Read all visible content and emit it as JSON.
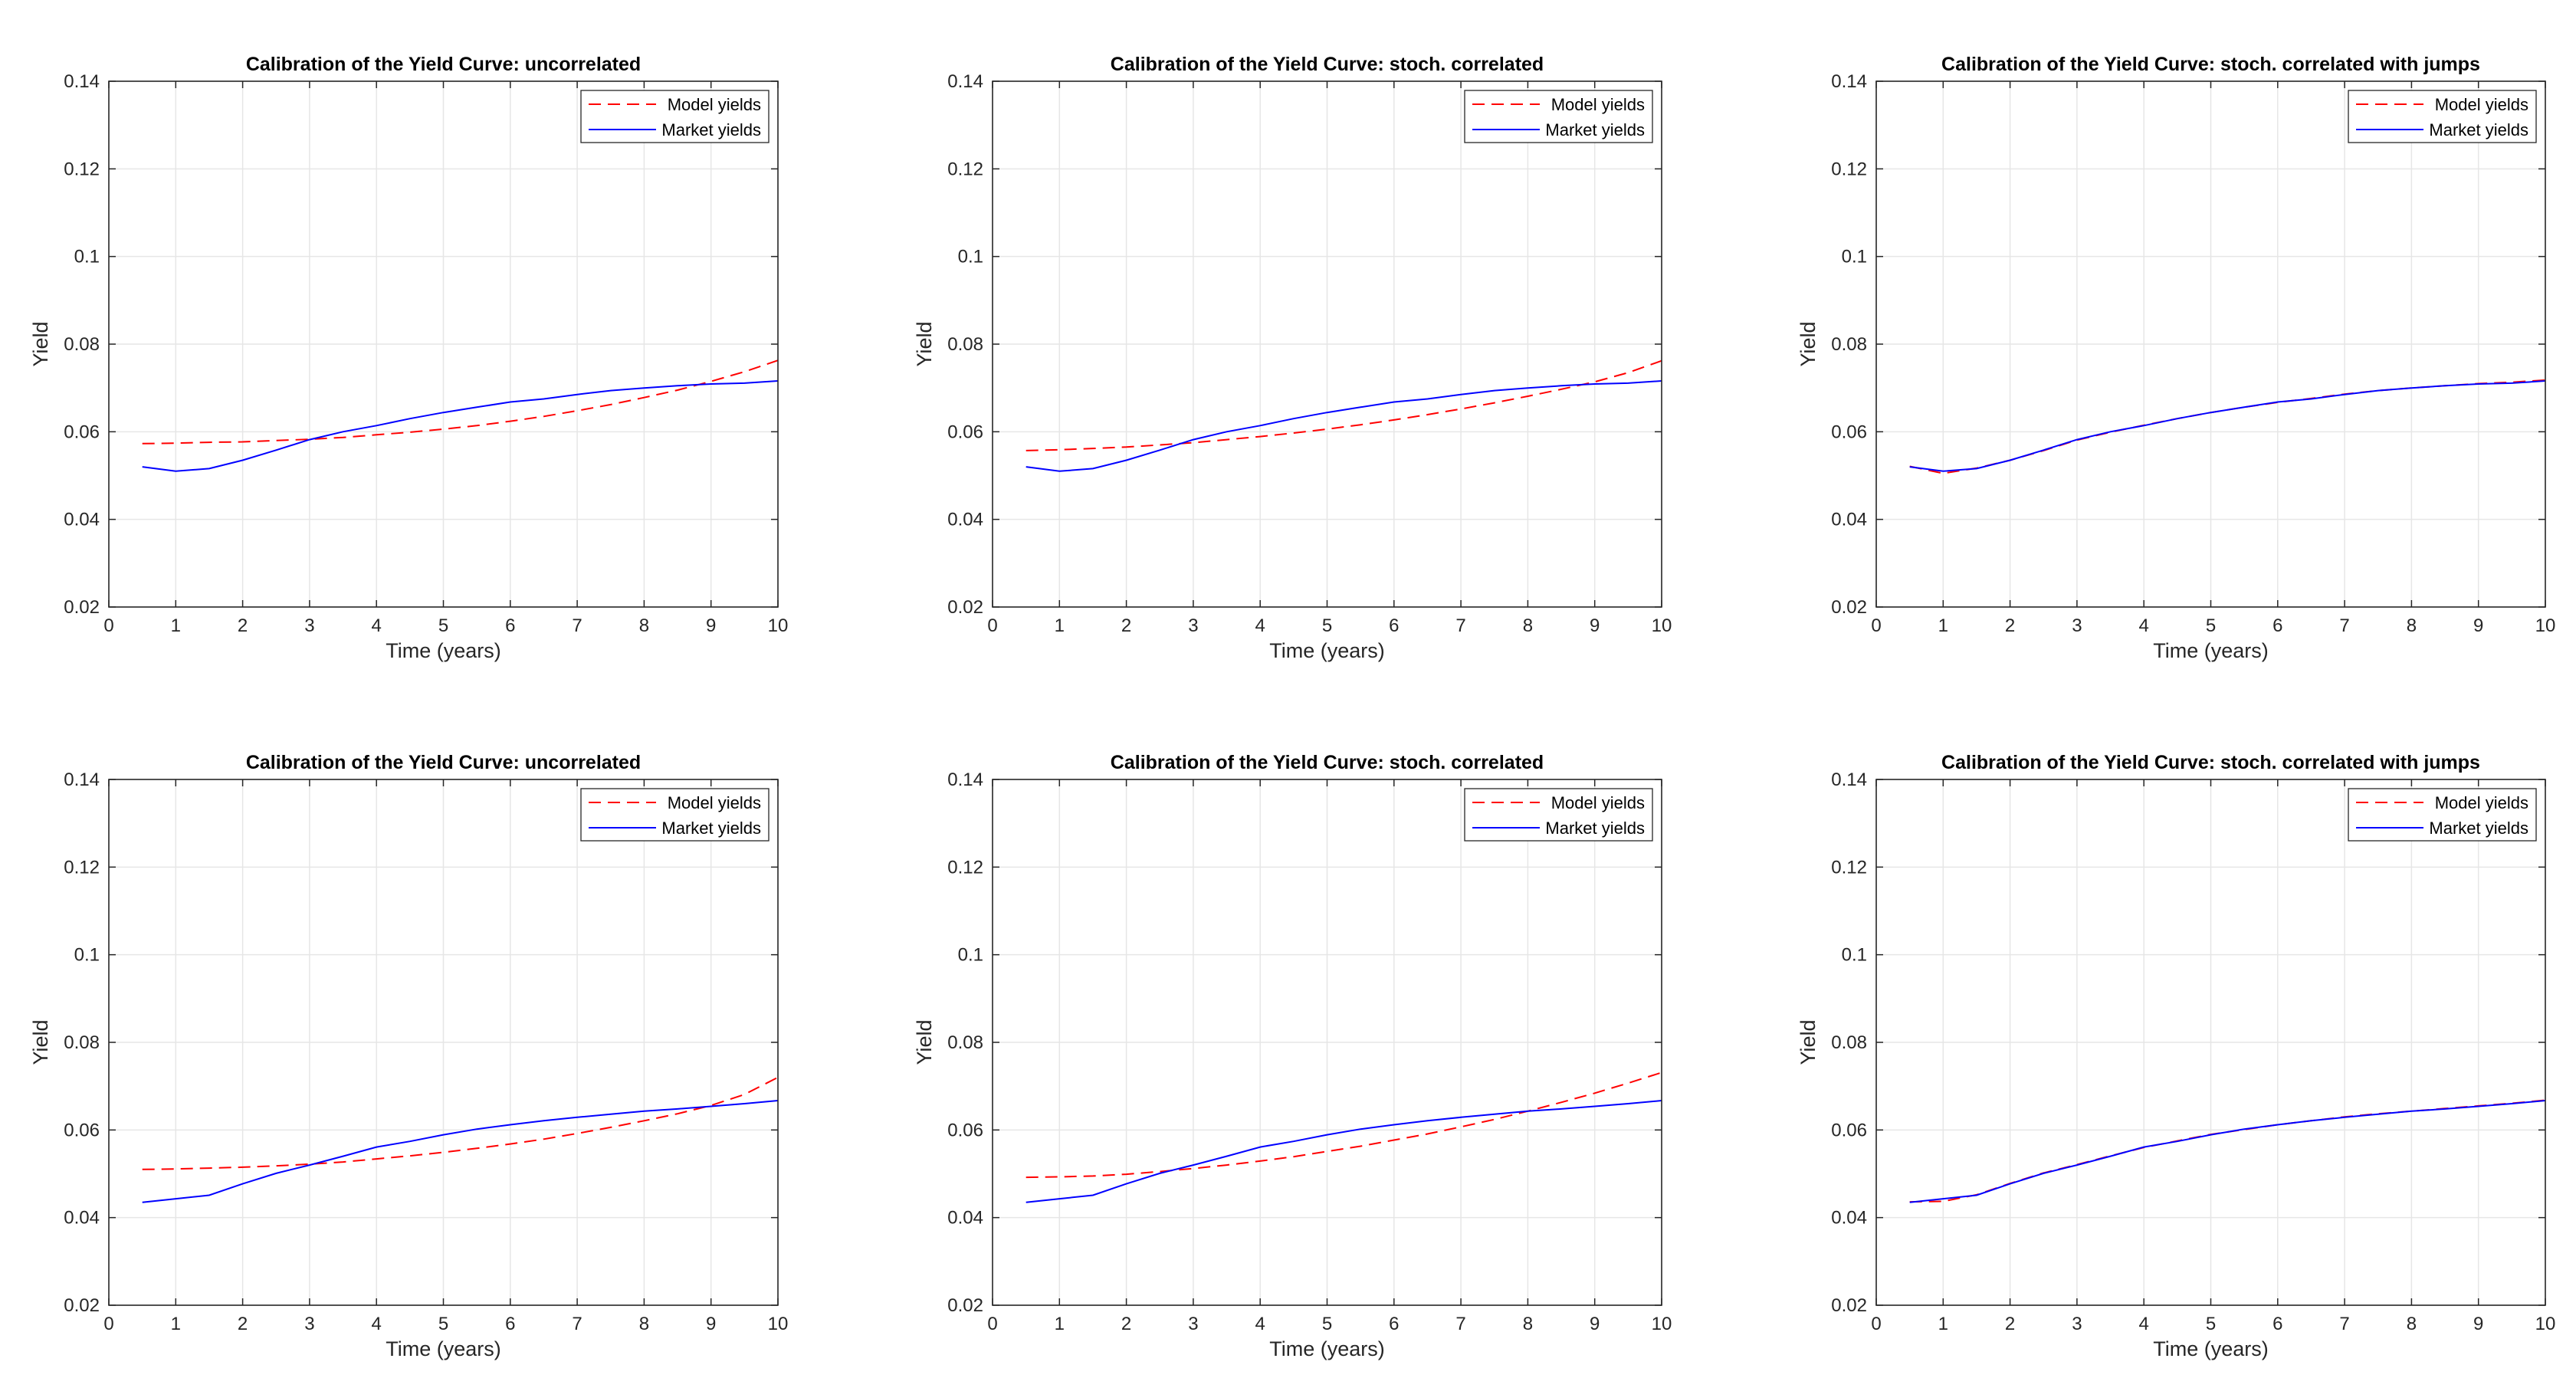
{
  "colors": {
    "model": "#ff0000",
    "market": "#0000ff",
    "grid": "#e6e6e6",
    "axis": "#262626",
    "background": "#ffffff"
  },
  "chart_data": [
    {
      "type": "line",
      "title": "Calibration of the Yield Curve: uncorrelated",
      "xlabel": "Time (years)",
      "ylabel": "Yield",
      "xlim": [
        0,
        10
      ],
      "ylim": [
        0.02,
        0.14
      ],
      "xticks": [
        0,
        1,
        2,
        3,
        4,
        5,
        6,
        7,
        8,
        9,
        10
      ],
      "xtick_labels": [
        "0",
        "1",
        "2",
        "3",
        "4",
        "5",
        "6",
        "7",
        "8",
        "9",
        "10"
      ],
      "yticks": [
        0.02,
        0.04,
        0.06,
        0.08,
        0.1,
        0.12,
        0.14
      ],
      "ytick_labels": [
        "0.02",
        "0.04",
        "0.06",
        "0.08",
        "0.1",
        "0.12",
        "0.14"
      ],
      "grid": true,
      "legend": "top-right",
      "series": [
        {
          "name": "Model yields",
          "style": "dashed",
          "x": [
            0.5,
            1,
            1.5,
            2,
            2.5,
            3,
            3.5,
            4,
            4.5,
            5,
            5.5,
            6,
            6.5,
            7,
            7.5,
            8,
            8.5,
            9,
            9.5,
            10
          ],
          "y": [
            0.0573,
            0.0574,
            0.0576,
            0.0577,
            0.058,
            0.0583,
            0.0587,
            0.0593,
            0.0599,
            0.0606,
            0.0614,
            0.0624,
            0.0635,
            0.0648,
            0.0662,
            0.0678,
            0.0695,
            0.0715,
            0.0737,
            0.0763
          ]
        },
        {
          "name": "Market yields",
          "style": "solid",
          "x": [
            0.5,
            1,
            1.5,
            2,
            2.5,
            3,
            3.5,
            4,
            4.5,
            5,
            5.5,
            6,
            6.5,
            7,
            7.5,
            8,
            8.5,
            9,
            9.5,
            10
          ],
          "y": [
            0.052,
            0.051,
            0.0516,
            0.0535,
            0.0558,
            0.0582,
            0.06,
            0.0614,
            0.063,
            0.0644,
            0.0656,
            0.0668,
            0.0675,
            0.0685,
            0.0694,
            0.07,
            0.0705,
            0.0709,
            0.0711,
            0.0716
          ]
        }
      ]
    },
    {
      "type": "line",
      "title": "Calibration of the Yield Curve: stoch. correlated",
      "xlabel": "Time (years)",
      "ylabel": "Yield",
      "xlim": [
        0,
        10
      ],
      "ylim": [
        0.02,
        0.14
      ],
      "xticks": [
        0,
        1,
        2,
        3,
        4,
        5,
        6,
        7,
        8,
        9,
        10
      ],
      "xtick_labels": [
        "0",
        "1",
        "2",
        "3",
        "4",
        "5",
        "6",
        "7",
        "8",
        "9",
        "10"
      ],
      "yticks": [
        0.02,
        0.04,
        0.06,
        0.08,
        0.1,
        0.12,
        0.14
      ],
      "ytick_labels": [
        "0.02",
        "0.04",
        "0.06",
        "0.08",
        "0.1",
        "0.12",
        "0.14"
      ],
      "grid": true,
      "legend": "top-right",
      "series": [
        {
          "name": "Model yields",
          "style": "dashed",
          "x": [
            0.5,
            1,
            1.5,
            2,
            2.5,
            3,
            3.5,
            4,
            4.5,
            5,
            5.5,
            6,
            6.5,
            7,
            7.5,
            8,
            8.5,
            9,
            9.5,
            10
          ],
          "y": [
            0.0557,
            0.0559,
            0.0562,
            0.0565,
            0.057,
            0.0575,
            0.0582,
            0.0589,
            0.0597,
            0.0606,
            0.0616,
            0.0627,
            0.0639,
            0.0652,
            0.0666,
            0.0681,
            0.0697,
            0.0714,
            0.0735,
            0.0762
          ]
        },
        {
          "name": "Market yields",
          "style": "solid",
          "x": [
            0.5,
            1,
            1.5,
            2,
            2.5,
            3,
            3.5,
            4,
            4.5,
            5,
            5.5,
            6,
            6.5,
            7,
            7.5,
            8,
            8.5,
            9,
            9.5,
            10
          ],
          "y": [
            0.052,
            0.051,
            0.0516,
            0.0535,
            0.0558,
            0.0582,
            0.06,
            0.0614,
            0.063,
            0.0644,
            0.0656,
            0.0668,
            0.0675,
            0.0685,
            0.0694,
            0.07,
            0.0705,
            0.0709,
            0.0711,
            0.0716
          ]
        }
      ]
    },
    {
      "type": "line",
      "title": "Calibration of the Yield Curve: stoch. correlated with jumps",
      "xlabel": "Time (years)",
      "ylabel": "Yield",
      "xlim": [
        0,
        10
      ],
      "ylim": [
        0.02,
        0.14
      ],
      "xticks": [
        0,
        1,
        2,
        3,
        4,
        5,
        6,
        7,
        8,
        9,
        10
      ],
      "xtick_labels": [
        "0",
        "1",
        "2",
        "3",
        "4",
        "5",
        "6",
        "7",
        "8",
        "9",
        "10"
      ],
      "yticks": [
        0.02,
        0.04,
        0.06,
        0.08,
        0.1,
        0.12,
        0.14
      ],
      "ytick_labels": [
        "0.02",
        "0.04",
        "0.06",
        "0.08",
        "0.1",
        "0.12",
        "0.14"
      ],
      "grid": true,
      "legend": "top-right",
      "series": [
        {
          "name": "Model yields",
          "style": "dashed",
          "x": [
            0.5,
            1,
            1.5,
            2,
            2.5,
            3,
            3.5,
            4,
            4.5,
            5,
            5.5,
            6,
            6.5,
            7,
            7.5,
            8,
            8.5,
            9,
            9.5,
            10
          ],
          "y": [
            0.0521,
            0.0505,
            0.0517,
            0.0535,
            0.0557,
            0.0581,
            0.0599,
            0.0615,
            0.063,
            0.0644,
            0.0656,
            0.0667,
            0.0676,
            0.0686,
            0.0694,
            0.07,
            0.0705,
            0.071,
            0.0713,
            0.0718
          ]
        },
        {
          "name": "Market yields",
          "style": "solid",
          "x": [
            0.5,
            1,
            1.5,
            2,
            2.5,
            3,
            3.5,
            4,
            4.5,
            5,
            5.5,
            6,
            6.5,
            7,
            7.5,
            8,
            8.5,
            9,
            9.5,
            10
          ],
          "y": [
            0.052,
            0.051,
            0.0516,
            0.0535,
            0.0558,
            0.0582,
            0.06,
            0.0614,
            0.063,
            0.0644,
            0.0656,
            0.0668,
            0.0675,
            0.0685,
            0.0694,
            0.07,
            0.0705,
            0.0709,
            0.0711,
            0.0716
          ]
        }
      ]
    },
    {
      "type": "line",
      "title": "Calibration of the Yield Curve: uncorrelated",
      "xlabel": "Time (years)",
      "ylabel": "Yield",
      "xlim": [
        0,
        10
      ],
      "ylim": [
        0.02,
        0.14
      ],
      "xticks": [
        0,
        1,
        2,
        3,
        4,
        5,
        6,
        7,
        8,
        9,
        10
      ],
      "xtick_labels": [
        "0",
        "1",
        "2",
        "3",
        "4",
        "5",
        "6",
        "7",
        "8",
        "9",
        "10"
      ],
      "yticks": [
        0.02,
        0.04,
        0.06,
        0.08,
        0.1,
        0.12,
        0.14
      ],
      "ytick_labels": [
        "0.02",
        "0.04",
        "0.06",
        "0.08",
        "0.1",
        "0.12",
        "0.14"
      ],
      "grid": true,
      "legend": "top-right",
      "series": [
        {
          "name": "Model yields",
          "style": "dashed",
          "x": [
            0.5,
            1,
            1.5,
            2,
            2.5,
            3,
            3.5,
            4,
            4.5,
            5,
            5.5,
            6,
            6.5,
            7,
            7.5,
            8,
            8.5,
            9,
            9.5,
            10
          ],
          "y": [
            0.051,
            0.0511,
            0.0513,
            0.0515,
            0.0518,
            0.0522,
            0.0527,
            0.0534,
            0.0541,
            0.0549,
            0.0558,
            0.0568,
            0.0579,
            0.0592,
            0.0606,
            0.0621,
            0.0637,
            0.0656,
            0.0681,
            0.072
          ]
        },
        {
          "name": "Market yields",
          "style": "solid",
          "x": [
            0.5,
            1,
            1.5,
            2,
            2.5,
            3,
            3.5,
            4,
            4.5,
            5,
            5.5,
            6,
            6.5,
            7,
            7.5,
            8,
            8.5,
            9,
            9.5,
            10
          ],
          "y": [
            0.0435,
            0.0443,
            0.0451,
            0.0477,
            0.0501,
            0.052,
            0.054,
            0.0561,
            0.0574,
            0.0589,
            0.0602,
            0.0612,
            0.0621,
            0.0629,
            0.0636,
            0.0643,
            0.0648,
            0.0654,
            0.066,
            0.0667
          ]
        }
      ]
    },
    {
      "type": "line",
      "title": "Calibration of the Yield Curve: stoch. correlated",
      "xlabel": "Time (years)",
      "ylabel": "Yield",
      "xlim": [
        0,
        10
      ],
      "ylim": [
        0.02,
        0.14
      ],
      "xticks": [
        0,
        1,
        2,
        3,
        4,
        5,
        6,
        7,
        8,
        9,
        10
      ],
      "xtick_labels": [
        "0",
        "1",
        "2",
        "3",
        "4",
        "5",
        "6",
        "7",
        "8",
        "9",
        "10"
      ],
      "yticks": [
        0.02,
        0.04,
        0.06,
        0.08,
        0.1,
        0.12,
        0.14
      ],
      "ytick_labels": [
        "0.02",
        "0.04",
        "0.06",
        "0.08",
        "0.1",
        "0.12",
        "0.14"
      ],
      "grid": true,
      "legend": "top-right",
      "series": [
        {
          "name": "Model yields",
          "style": "dashed",
          "x": [
            0.5,
            1,
            1.5,
            2,
            2.5,
            3,
            3.5,
            4,
            4.5,
            5,
            5.5,
            6,
            6.5,
            7,
            7.5,
            8,
            8.5,
            9,
            9.5,
            10
          ],
          "y": [
            0.0492,
            0.0493,
            0.0495,
            0.0499,
            0.0505,
            0.0512,
            0.052,
            0.0529,
            0.0539,
            0.0551,
            0.0563,
            0.0577,
            0.0591,
            0.0607,
            0.0624,
            0.0643,
            0.0663,
            0.0684,
            0.0707,
            0.0731
          ]
        },
        {
          "name": "Market yields",
          "style": "solid",
          "x": [
            0.5,
            1,
            1.5,
            2,
            2.5,
            3,
            3.5,
            4,
            4.5,
            5,
            5.5,
            6,
            6.5,
            7,
            7.5,
            8,
            8.5,
            9,
            9.5,
            10
          ],
          "y": [
            0.0435,
            0.0443,
            0.0451,
            0.0477,
            0.0501,
            0.052,
            0.054,
            0.0561,
            0.0574,
            0.0589,
            0.0602,
            0.0612,
            0.0621,
            0.0629,
            0.0636,
            0.0643,
            0.0648,
            0.0654,
            0.066,
            0.0667
          ]
        }
      ]
    },
    {
      "type": "line",
      "title": "Calibration of the Yield Curve: stoch. correlated with jumps",
      "xlabel": "Time (years)",
      "ylabel": "Yield",
      "xlim": [
        0,
        10
      ],
      "ylim": [
        0.02,
        0.14
      ],
      "xticks": [
        0,
        1,
        2,
        3,
        4,
        5,
        6,
        7,
        8,
        9,
        10
      ],
      "xtick_labels": [
        "0",
        "1",
        "2",
        "3",
        "4",
        "5",
        "6",
        "7",
        "8",
        "9",
        "10"
      ],
      "yticks": [
        0.02,
        0.04,
        0.06,
        0.08,
        0.1,
        0.12,
        0.14
      ],
      "ytick_labels": [
        "0.02",
        "0.04",
        "0.06",
        "0.08",
        "0.1",
        "0.12",
        "0.14"
      ],
      "grid": true,
      "legend": "top-right",
      "series": [
        {
          "name": "Model yields",
          "style": "dashed",
          "x": [
            0.5,
            1,
            1.5,
            2,
            2.5,
            3,
            3.5,
            4,
            4.5,
            5,
            5.5,
            6,
            6.5,
            7,
            7.5,
            8,
            8.5,
            9,
            9.5,
            10
          ],
          "y": [
            0.0436,
            0.0437,
            0.0452,
            0.0478,
            0.0502,
            0.0521,
            0.0541,
            0.056,
            0.0575,
            0.059,
            0.0601,
            0.0612,
            0.0621,
            0.063,
            0.0637,
            0.0643,
            0.0649,
            0.0655,
            0.0661,
            0.0668
          ]
        },
        {
          "name": "Market yields",
          "style": "solid",
          "x": [
            0.5,
            1,
            1.5,
            2,
            2.5,
            3,
            3.5,
            4,
            4.5,
            5,
            5.5,
            6,
            6.5,
            7,
            7.5,
            8,
            8.5,
            9,
            9.5,
            10
          ],
          "y": [
            0.0435,
            0.0443,
            0.0451,
            0.0477,
            0.0501,
            0.052,
            0.054,
            0.0561,
            0.0574,
            0.0589,
            0.0602,
            0.0612,
            0.0621,
            0.0629,
            0.0636,
            0.0643,
            0.0648,
            0.0654,
            0.066,
            0.0667
          ]
        }
      ]
    }
  ]
}
